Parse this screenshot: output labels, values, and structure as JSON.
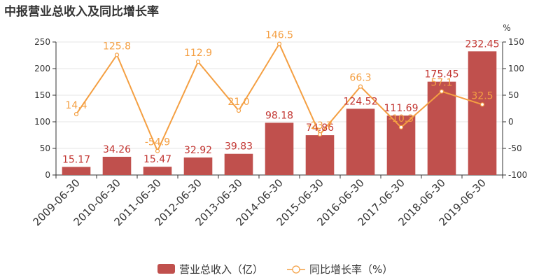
{
  "chart_data": {
    "type": "bar+line",
    "title": "中报营业总收入及同比增长率",
    "categories": [
      "2009-06-30",
      "2010-06-30",
      "2011-06-30",
      "2012-06-30",
      "2013-06-30",
      "2014-06-30",
      "2015-06-30",
      "2016-06-30",
      "2017-06-30",
      "2018-06-30",
      "2019-06-30"
    ],
    "series": [
      {
        "name": "营业总收入（亿）",
        "type": "bar",
        "axis": "left",
        "color": "#c0504d",
        "values": [
          15.17,
          34.26,
          15.47,
          32.92,
          39.83,
          98.18,
          74.86,
          124.52,
          111.69,
          175.45,
          232.45
        ],
        "labels": [
          "15.17",
          "34.26",
          "15.47",
          "32.92",
          "39.83",
          "98.18",
          "74.86",
          "124.52",
          "111.69",
          "175.45",
          "232.45"
        ]
      },
      {
        "name": "同比增长率（%）",
        "type": "line",
        "axis": "right",
        "color": "#f49f42",
        "values": [
          14.4,
          125.8,
          -54.9,
          112.9,
          21.0,
          146.5,
          -23.7,
          66.3,
          -10.3,
          57.1,
          32.5
        ],
        "labels": [
          "14.4",
          "125.8",
          "-54.9",
          "112.9",
          "21.0",
          "146.5",
          "-23.7",
          "66.3",
          "-10.3",
          "57.1",
          "32.5"
        ]
      }
    ],
    "y_left": {
      "min": 0,
      "max": 250,
      "ticks": [
        "0",
        "50",
        "100",
        "150",
        "200",
        "250"
      ]
    },
    "y_right": {
      "min": -100,
      "max": 150,
      "unit": "%",
      "ticks": [
        "-100",
        "-50",
        "0",
        "50",
        "100",
        "150"
      ]
    },
    "grid": true,
    "legend_position": "bottom"
  }
}
